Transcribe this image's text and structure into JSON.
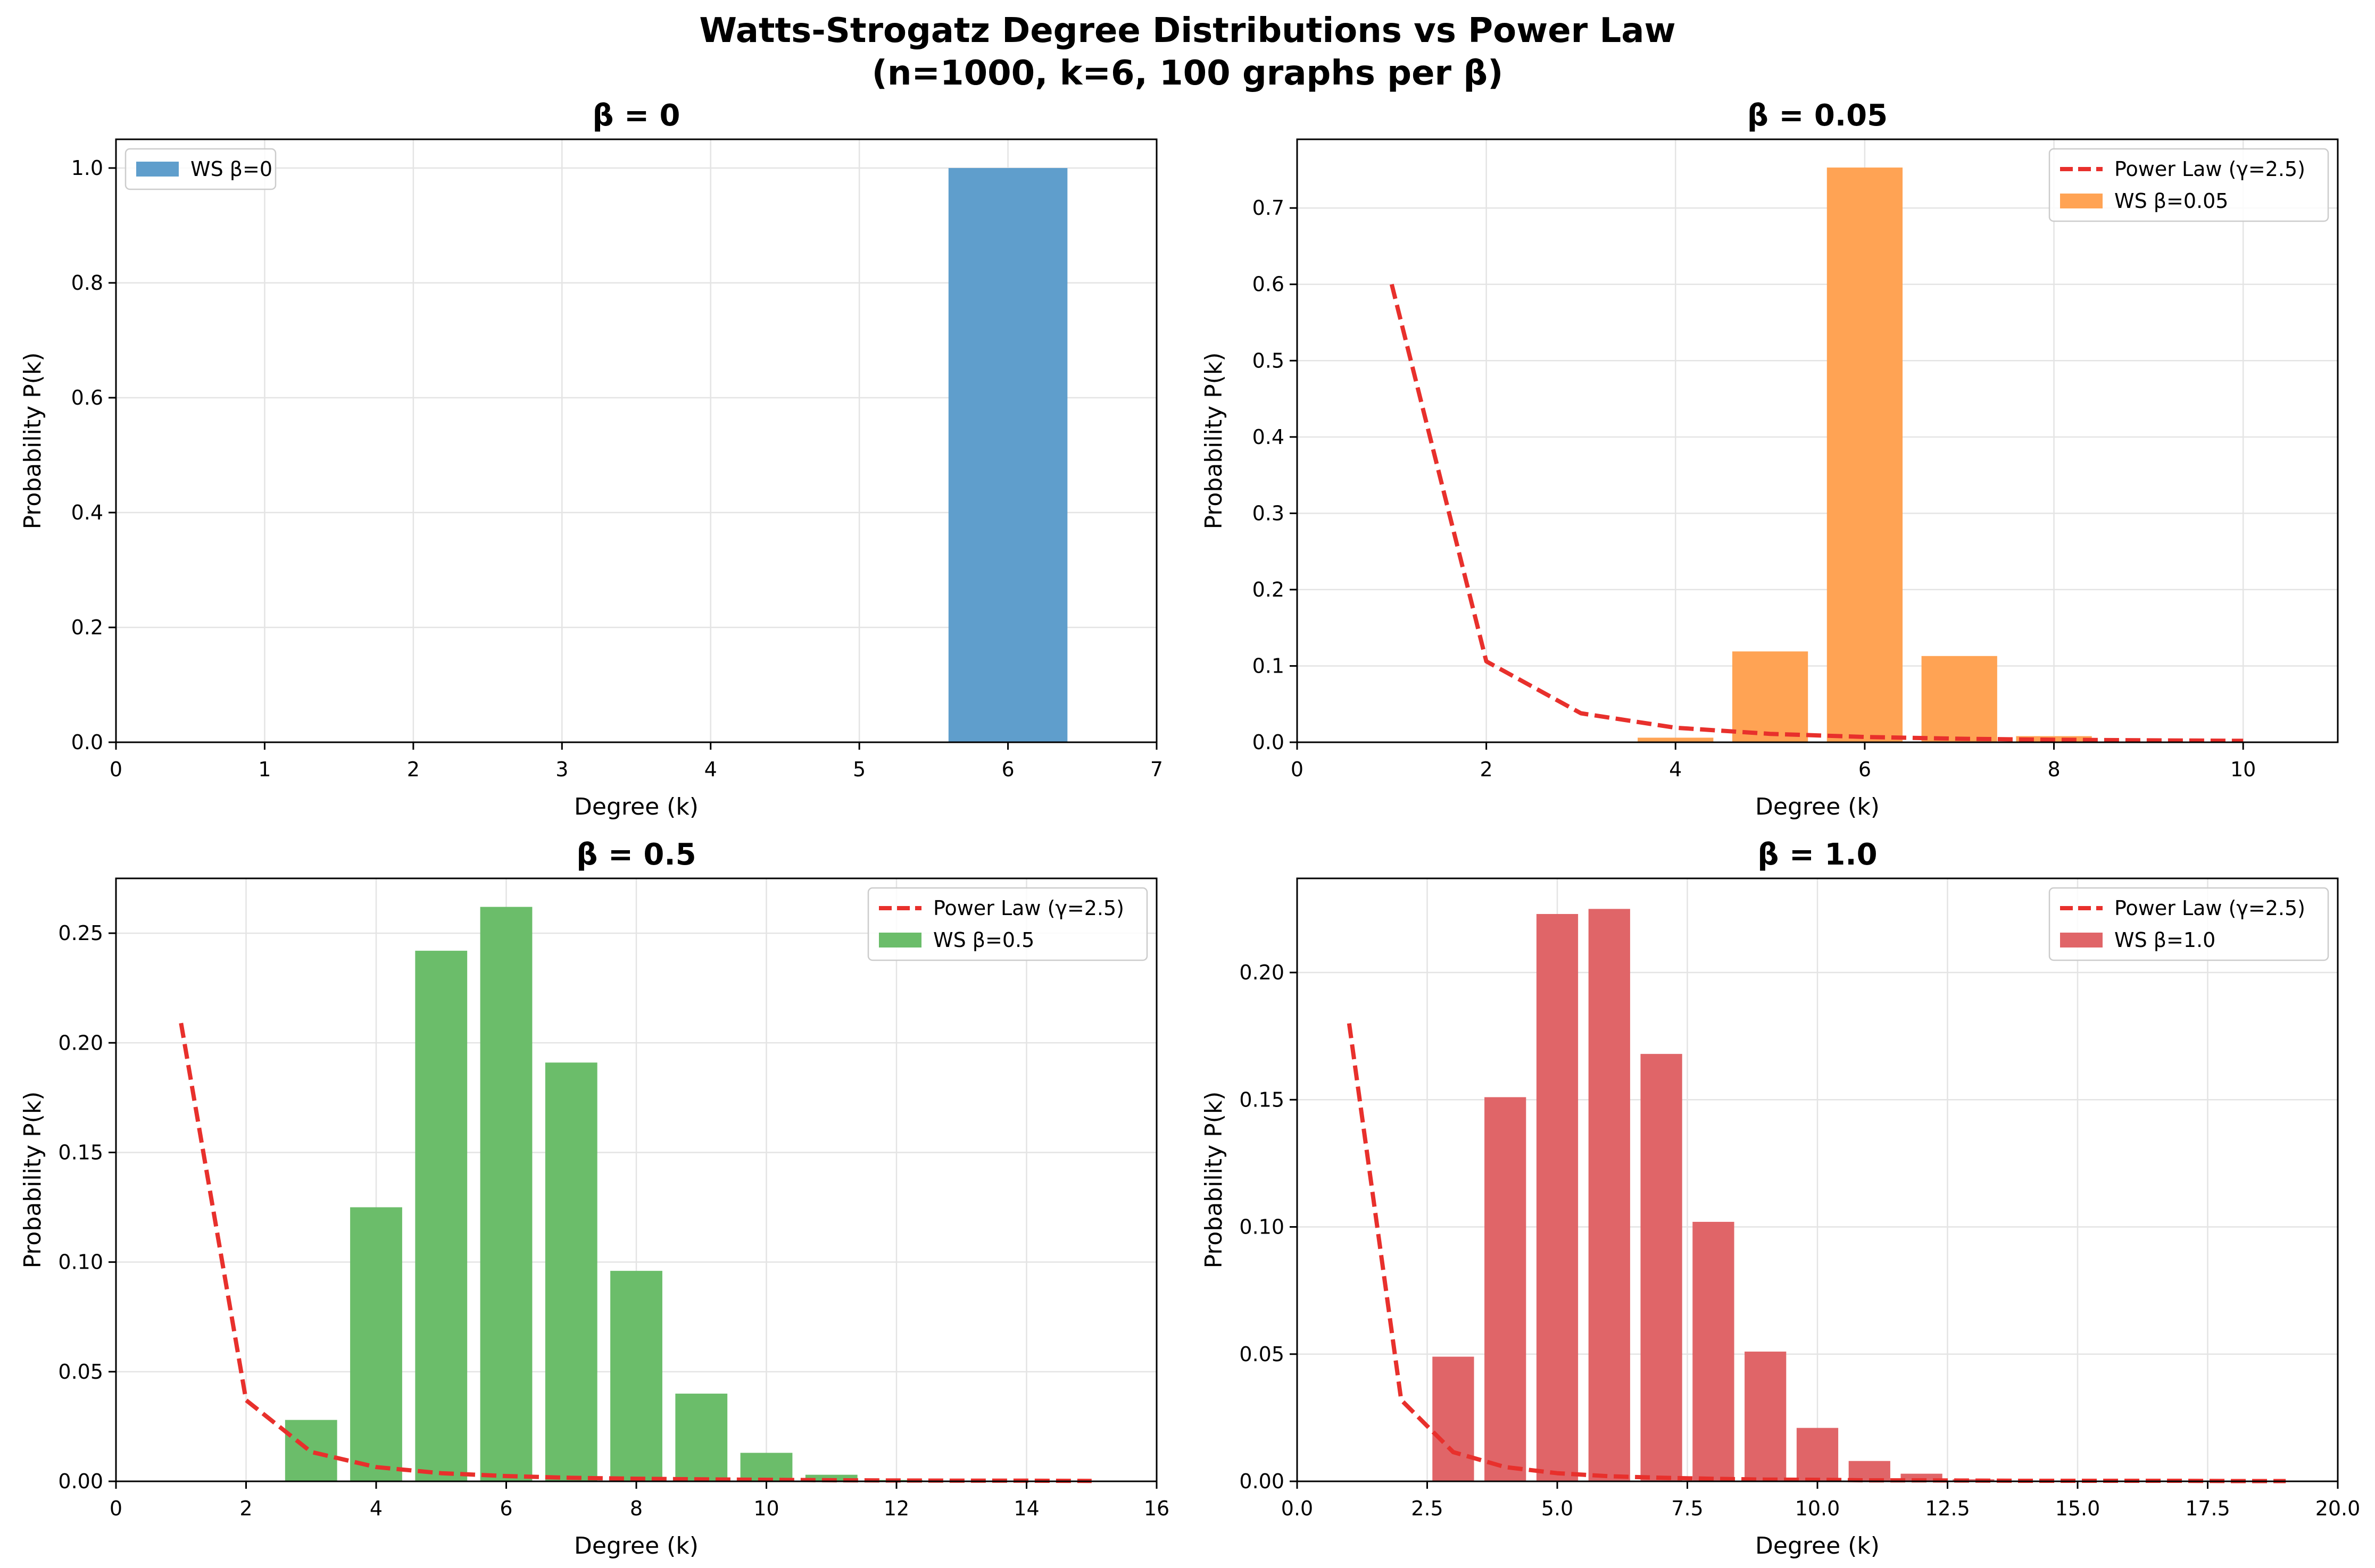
{
  "figure": {
    "title_line1": "Watts-Strogatz Degree Distributions vs Power Law",
    "title_line2": "(n=1000, k=6, 100 graphs per β)"
  },
  "colors": {
    "power_law": "#e8302c",
    "ws_beta_0": "#5f9ecc",
    "ws_beta_0.05": "#ffa354",
    "ws_beta_0.5": "#6bbd6a",
    "ws_beta_1.0": "#e06568",
    "grid": "#e4e4e4"
  },
  "chart_data": [
    {
      "type": "bar",
      "title": "β = 0",
      "xlabel": "Degree (k)",
      "ylabel": "Probability P(k)",
      "xlim": [
        0,
        7
      ],
      "ylim": [
        0,
        1.05
      ],
      "xticks": [
        0,
        1,
        2,
        3,
        4,
        5,
        6,
        7
      ],
      "xtick_labels": [
        "0",
        "1",
        "2",
        "3",
        "4",
        "5",
        "6",
        "7"
      ],
      "yticks": [
        0,
        0.2,
        0.4,
        0.6,
        0.8,
        1.0
      ],
      "ytick_labels": [
        "0.0",
        "0.2",
        "0.4",
        "0.6",
        "0.8",
        "1.0"
      ],
      "grid": true,
      "legend_position": "upper-left",
      "bar_width": 0.8,
      "bar_series": {
        "name": "WS β=0",
        "color": "#5f9ecc",
        "x": [
          6
        ],
        "y": [
          1.0
        ]
      },
      "line_series": null
    },
    {
      "type": "bar",
      "title": "β = 0.05",
      "xlabel": "Degree (k)",
      "ylabel": "Probability P(k)",
      "xlim": [
        0,
        11
      ],
      "ylim": [
        0,
        0.79
      ],
      "xticks": [
        0,
        2,
        4,
        6,
        8,
        10
      ],
      "xtick_labels": [
        "0",
        "2",
        "4",
        "6",
        "8",
        "10"
      ],
      "yticks": [
        0,
        0.1,
        0.2,
        0.3,
        0.4,
        0.5,
        0.6,
        0.7
      ],
      "ytick_labels": [
        "0.0",
        "0.1",
        "0.2",
        "0.3",
        "0.4",
        "0.5",
        "0.6",
        "0.7"
      ],
      "grid": true,
      "legend_position": "upper-right",
      "bar_width": 0.8,
      "bar_series": {
        "name": "WS β=0.05",
        "color": "#ffa354",
        "x": [
          4,
          5,
          6,
          7,
          8
        ],
        "y": [
          0.006,
          0.119,
          0.753,
          0.113,
          0.008
        ]
      },
      "line_series": {
        "name": "Power Law (γ=2.5)",
        "color": "#e8302c",
        "x": [
          1,
          2,
          3,
          4,
          5,
          6,
          7,
          8,
          9,
          10
        ],
        "y": [
          0.6,
          0.106,
          0.038,
          0.019,
          0.011,
          0.007,
          0.0046,
          0.0033,
          0.0025,
          0.0019
        ]
      }
    },
    {
      "type": "bar",
      "title": "β = 0.5",
      "xlabel": "Degree (k)",
      "ylabel": "Probability P(k)",
      "xlim": [
        0,
        16
      ],
      "ylim": [
        0,
        0.275
      ],
      "xticks": [
        0,
        2,
        4,
        6,
        8,
        10,
        12,
        14,
        16
      ],
      "xtick_labels": [
        "0",
        "2",
        "4",
        "6",
        "8",
        "10",
        "12",
        "14",
        "16"
      ],
      "yticks": [
        0,
        0.05,
        0.1,
        0.15,
        0.2,
        0.25
      ],
      "ytick_labels": [
        "0.00",
        "0.05",
        "0.10",
        "0.15",
        "0.20",
        "0.25"
      ],
      "grid": true,
      "legend_position": "upper-right",
      "bar_width": 0.8,
      "bar_series": {
        "name": "WS β=0.5",
        "color": "#6bbd6a",
        "x": [
          3,
          4,
          5,
          6,
          7,
          8,
          9,
          10,
          11,
          12
        ],
        "y": [
          0.028,
          0.125,
          0.242,
          0.262,
          0.191,
          0.096,
          0.04,
          0.013,
          0.003,
          0.0006
        ]
      },
      "line_series": {
        "name": "Power Law (γ=2.5)",
        "color": "#e8302c",
        "x": [
          1,
          2,
          3,
          4,
          5,
          6,
          7,
          8,
          9,
          10,
          11,
          12,
          13,
          14,
          15
        ],
        "y": [
          0.209,
          0.037,
          0.0134,
          0.0065,
          0.0037,
          0.0024,
          0.0016,
          0.0012,
          0.0009,
          0.0007,
          0.0005,
          0.0004,
          0.0003,
          0.0003,
          0.0002
        ]
      }
    },
    {
      "type": "bar",
      "title": "β = 1.0",
      "xlabel": "Degree (k)",
      "ylabel": "Probability P(k)",
      "xlim": [
        0,
        20
      ],
      "ylim": [
        0,
        0.237
      ],
      "xticks": [
        0,
        2.5,
        5,
        7.5,
        10,
        12.5,
        15,
        17.5,
        20
      ],
      "xtick_labels": [
        "0.0",
        "2.5",
        "5.0",
        "7.5",
        "10.0",
        "12.5",
        "15.0",
        "17.5",
        "20.0"
      ],
      "yticks": [
        0,
        0.05,
        0.1,
        0.15,
        0.2
      ],
      "ytick_labels": [
        "0.00",
        "0.05",
        "0.10",
        "0.15",
        "0.20"
      ],
      "grid": true,
      "legend_position": "upper-right",
      "bar_width": 0.8,
      "bar_series": {
        "name": "WS β=1.0",
        "color": "#e06568",
        "x": [
          2,
          3,
          4,
          5,
          6,
          7,
          8,
          9,
          10,
          11,
          12,
          13
        ],
        "y": [
          0.0003,
          0.049,
          0.151,
          0.223,
          0.225,
          0.168,
          0.102,
          0.051,
          0.021,
          0.008,
          0.003,
          0.0008
        ]
      },
      "line_series": {
        "name": "Power Law (γ=2.5)",
        "color": "#e8302c",
        "x": [
          1,
          2,
          3,
          4,
          5,
          6,
          7,
          8,
          9,
          10,
          11,
          12,
          13,
          14,
          15,
          16,
          17,
          18,
          19
        ],
        "y": [
          0.18,
          0.032,
          0.0115,
          0.0056,
          0.0032,
          0.002,
          0.0014,
          0.001,
          0.0007,
          0.0006,
          0.0004,
          0.0004,
          0.0003,
          0.0002,
          0.0002,
          0.0002,
          0.0002,
          0.0001,
          0.0001
        ]
      }
    }
  ]
}
